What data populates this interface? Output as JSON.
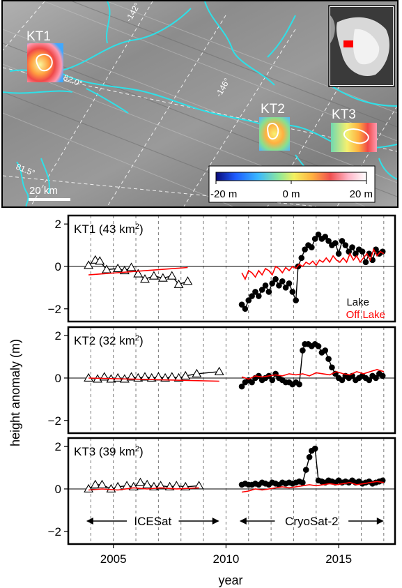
{
  "map": {
    "lakes": [
      {
        "label": "KT1"
      },
      {
        "label": "KT2"
      },
      {
        "label": "KT3"
      }
    ],
    "graticule_labels": [
      "-142°",
      "82.0°",
      "-146°",
      "81.5°"
    ],
    "scale_bar_label": "20 km",
    "colorbar": {
      "tick_labels": [
        "-20 m",
        "0 m",
        "20 m"
      ],
      "range": [
        -20,
        20
      ],
      "colors": [
        "#0a0a78",
        "#1e5cff",
        "#3ab8ff",
        "#8fe89a",
        "#f3f060",
        "#ffb040",
        "#f05050",
        "#ffb6c8",
        "#ffffff"
      ]
    },
    "river_color": "#2ee0e8",
    "inset_marker_color": "#ff0000"
  },
  "chart_data": {
    "type": "line",
    "xlabel": "year",
    "ylabel": "height anomaly (m)",
    "xlim": [
      2003,
      2017.5
    ],
    "ylim": [
      -2.6,
      2.4
    ],
    "x_ticks": [
      2005,
      2010,
      2015
    ],
    "y_ticks": [
      -2,
      0,
      2
    ],
    "legend": [
      {
        "name": "Lake",
        "color": "#000000"
      },
      {
        "name": "Off Lake",
        "color": "#ff0000"
      }
    ],
    "mission_labels": [
      "ICESat",
      "CryoSat-2"
    ],
    "panels": [
      {
        "name": "KT1",
        "title": "KT1 (43 km",
        "title_sup": "2",
        "title_end": ")",
        "series": [
          {
            "name": "ICESat Lake",
            "marker": "triangle",
            "color": "#000000",
            "x": [
              2003.9,
              2004.2,
              2004.4,
              2004.7,
              2005.2,
              2005.5,
              2005.8,
              2006.1,
              2006.4,
              2006.8,
              2007.2,
              2007.6,
              2007.9,
              2008.3
            ],
            "y": [
              0.05,
              0.3,
              0.25,
              -0.15,
              -0.1,
              -0.2,
              -0.05,
              -0.35,
              -0.6,
              -0.45,
              -0.55,
              -0.45,
              -0.85,
              -0.7
            ]
          },
          {
            "name": "ICESat Off Lake",
            "marker": "none",
            "color": "#ff0000",
            "x": [
              2003.9,
              2008.3
            ],
            "y": [
              -0.4,
              -0.05
            ]
          },
          {
            "name": "CryoSat-2 Lake",
            "marker": "circle",
            "color": "#000000",
            "x": [
              2010.7,
              2010.85,
              2011.0,
              2011.15,
              2011.3,
              2011.45,
              2011.6,
              2011.75,
              2011.9,
              2012.05,
              2012.2,
              2012.35,
              2012.5,
              2012.65,
              2012.8,
              2012.95,
              2013.1,
              2013.2,
              2013.35,
              2013.5,
              2013.65,
              2013.8,
              2013.95,
              2014.1,
              2014.25,
              2014.4,
              2014.55,
              2014.7,
              2014.85,
              2015.0,
              2015.15,
              2015.3,
              2015.45,
              2015.6,
              2015.75,
              2015.9,
              2016.05,
              2016.2,
              2016.35,
              2016.5,
              2016.65,
              2016.8,
              2016.95
            ],
            "y": [
              -1.8,
              -2.0,
              -1.6,
              -1.4,
              -1.2,
              -1.4,
              -1.1,
              -0.9,
              -1.2,
              -0.8,
              -0.6,
              -0.9,
              -0.7,
              -1.0,
              -0.8,
              -1.2,
              -1.6,
              0.0,
              0.4,
              0.8,
              1.0,
              0.9,
              1.3,
              1.5,
              1.3,
              1.4,
              1.2,
              1.0,
              1.1,
              0.6,
              1.2,
              1.0,
              0.7,
              0.9,
              0.6,
              0.8,
              0.7,
              0.2,
              0.6,
              0.3,
              0.8,
              0.6,
              0.7
            ]
          },
          {
            "name": "CryoSat-2 Off Lake",
            "marker": "none",
            "color": "#ff0000",
            "x": [
              2010.7,
              2010.85,
              2011.0,
              2011.15,
              2011.3,
              2011.45,
              2011.6,
              2011.75,
              2011.9,
              2012.05,
              2012.2,
              2012.35,
              2012.5,
              2012.65,
              2012.8,
              2012.95,
              2013.1,
              2013.25,
              2013.4,
              2013.55,
              2013.7,
              2013.85,
              2014.0,
              2014.15,
              2014.3,
              2014.45,
              2014.6,
              2014.75,
              2014.9,
              2015.05,
              2015.2,
              2015.35,
              2015.5,
              2015.65,
              2015.8,
              2015.95,
              2016.1,
              2016.25,
              2016.4,
              2016.55,
              2016.7,
              2016.85,
              2017.0
            ],
            "y": [
              -0.3,
              -0.6,
              -0.2,
              -0.3,
              -0.5,
              -0.2,
              -0.4,
              -0.1,
              -0.2,
              -0.4,
              0.0,
              -0.1,
              -0.3,
              -0.05,
              -0.2,
              0.0,
              -0.1,
              0.1,
              0.0,
              0.2,
              0.1,
              0.25,
              0.05,
              0.3,
              0.2,
              0.4,
              0.2,
              0.5,
              0.3,
              0.2,
              0.4,
              0.2,
              0.6,
              0.3,
              0.5,
              0.2,
              0.4,
              0.6,
              0.3,
              0.8,
              0.5,
              0.7,
              0.6
            ]
          }
        ]
      },
      {
        "name": "KT2",
        "title": "KT2 (32 km",
        "title_sup": "2",
        "title_end": ")",
        "series": [
          {
            "name": "ICESat Lake",
            "marker": "triangle",
            "color": "#000000",
            "x": [
              2003.9,
              2004.3,
              2004.6,
              2004.9,
              2005.2,
              2005.5,
              2005.8,
              2006.1,
              2006.4,
              2006.7,
              2007.0,
              2007.3,
              2007.6,
              2007.9,
              2008.2,
              2008.7,
              2009.7
            ],
            "y": [
              0.0,
              -0.05,
              0.05,
              -0.05,
              0.0,
              -0.05,
              0.05,
              0.0,
              0.05,
              0.0,
              0.05,
              0.0,
              0.05,
              0.0,
              0.1,
              0.2,
              0.3
            ]
          },
          {
            "name": "ICESat Off Lake",
            "marker": "none",
            "color": "#ff0000",
            "x": [
              2003.9,
              2009.7
            ],
            "y": [
              0.0,
              -0.15
            ]
          },
          {
            "name": "CryoSat-2 Lake",
            "marker": "circle",
            "color": "#000000",
            "x": [
              2010.7,
              2010.85,
              2011.0,
              2011.15,
              2011.3,
              2011.45,
              2011.6,
              2011.75,
              2011.9,
              2012.05,
              2012.2,
              2012.35,
              2012.5,
              2012.65,
              2012.8,
              2012.95,
              2013.1,
              2013.25,
              2013.4,
              2013.5,
              2013.65,
              2013.8,
              2013.95,
              2014.1,
              2014.25,
              2014.4,
              2014.55,
              2014.7,
              2014.85,
              2015.0,
              2015.15,
              2015.3,
              2015.45,
              2015.6,
              2015.75,
              2015.9,
              2016.05,
              2016.2,
              2016.35,
              2016.5,
              2016.65,
              2016.8,
              2016.95
            ],
            "y": [
              -0.4,
              -0.2,
              -0.1,
              -0.2,
              0.0,
              0.1,
              -0.1,
              0.0,
              0.1,
              -0.1,
              0.2,
              0.0,
              -0.1,
              -0.2,
              -0.2,
              -0.3,
              -0.2,
              -0.3,
              1.3,
              1.6,
              1.6,
              1.5,
              1.6,
              1.5,
              1.2,
              1.3,
              0.9,
              0.5,
              0.2,
              0.0,
              -0.1,
              0.1,
              0.0,
              0.1,
              -0.1,
              0.0,
              0.1,
              0.0,
              -0.1,
              0.1,
              0.0,
              0.2,
              0.1
            ]
          },
          {
            "name": "CryoSat-2 Off Lake",
            "marker": "none",
            "color": "#ff0000",
            "x": [
              2010.7,
              2011.0,
              2011.3,
              2011.6,
              2011.9,
              2012.2,
              2012.5,
              2012.8,
              2013.1,
              2013.4,
              2013.7,
              2014.0,
              2014.3,
              2014.6,
              2014.9,
              2015.2,
              2015.5,
              2015.8,
              2016.1,
              2016.4,
              2016.7,
              2017.0
            ],
            "y": [
              0.05,
              -0.05,
              0.1,
              0.05,
              0.1,
              0.15,
              0.1,
              0.2,
              0.15,
              0.2,
              0.1,
              0.25,
              0.2,
              0.15,
              0.3,
              0.2,
              0.15,
              0.3,
              0.2,
              0.3,
              0.4,
              0.3
            ]
          }
        ]
      },
      {
        "name": "KT3",
        "title": "KT3 (39 km",
        "title_sup": "2",
        "title_end": ")",
        "series": [
          {
            "name": "ICESat Lake",
            "marker": "triangle",
            "color": "#000000",
            "x": [
              2003.9,
              2004.2,
              2004.5,
              2004.9,
              2005.2,
              2005.6,
              2005.9,
              2006.2,
              2006.5,
              2006.8,
              2007.1,
              2007.5,
              2007.8,
              2008.2,
              2008.8
            ],
            "y": [
              0.0,
              0.2,
              0.2,
              0.0,
              0.1,
              0.15,
              0.1,
              0.3,
              0.2,
              0.1,
              0.15,
              0.1,
              0.15,
              0.1,
              0.15
            ]
          },
          {
            "name": "ICESat Off Lake",
            "marker": "none",
            "color": "#ff0000",
            "x": [
              2003.9,
              2004.5,
              2005.2,
              2005.9,
              2006.5,
              2007.1,
              2007.8,
              2008.8
            ],
            "y": [
              -0.05,
              0.0,
              -0.05,
              0.05,
              0.0,
              0.05,
              0.0,
              0.05
            ]
          },
          {
            "name": "CryoSat-2 Lake",
            "marker": "circle",
            "color": "#000000",
            "x": [
              2010.7,
              2010.85,
              2011.0,
              2011.15,
              2011.3,
              2011.45,
              2011.6,
              2011.75,
              2011.9,
              2012.05,
              2012.2,
              2012.35,
              2012.5,
              2012.65,
              2012.8,
              2012.95,
              2013.1,
              2013.25,
              2013.4,
              2013.55,
              2013.7,
              2013.8,
              2013.95,
              2014.1,
              2014.25,
              2014.4,
              2014.55,
              2014.7,
              2014.85,
              2015.0,
              2015.15,
              2015.3,
              2015.45,
              2015.6,
              2015.75,
              2015.9,
              2016.05,
              2016.2,
              2016.35,
              2016.5,
              2016.65,
              2016.8,
              2016.95
            ],
            "y": [
              0.2,
              0.25,
              0.2,
              0.2,
              0.25,
              0.2,
              0.3,
              0.25,
              0.2,
              0.3,
              0.25,
              0.2,
              0.3,
              0.25,
              0.3,
              0.25,
              0.3,
              0.35,
              0.3,
              0.9,
              1.5,
              1.8,
              1.9,
              0.4,
              0.35,
              0.3,
              0.4,
              0.35,
              0.3,
              0.4,
              0.3,
              0.35,
              0.3,
              0.4,
              0.3,
              0.35,
              0.25,
              0.3,
              0.35,
              0.25,
              0.3,
              0.35,
              0.4
            ]
          },
          {
            "name": "CryoSat-2 Off Lake",
            "marker": "none",
            "color": "#ff0000",
            "x": [
              2010.7,
              2011.0,
              2011.3,
              2011.6,
              2011.9,
              2012.2,
              2012.5,
              2012.8,
              2013.1,
              2013.4,
              2013.7,
              2014.0,
              2014.3,
              2014.6,
              2014.9,
              2015.2,
              2015.5,
              2015.8,
              2016.1,
              2016.4,
              2016.7,
              2017.0
            ],
            "y": [
              -0.15,
              -0.1,
              0.0,
              -0.05,
              0.0,
              0.05,
              0.1,
              0.05,
              0.1,
              0.15,
              0.2,
              0.15,
              0.2,
              0.25,
              0.2,
              0.25,
              0.3,
              0.2,
              0.25,
              0.3,
              0.35,
              0.3
            ]
          }
        ]
      }
    ]
  }
}
